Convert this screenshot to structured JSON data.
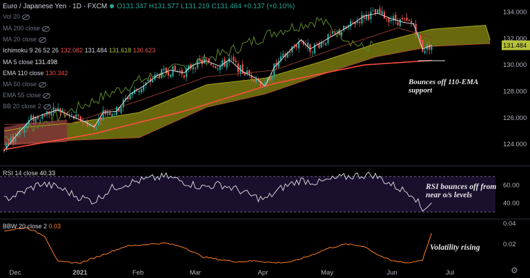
{
  "header": {
    "symbol": "Euro / Japanese Yen · 1D · FXCM",
    "ohlc": "O131.347 H131.577 L131.219 C131.484 +0.137 (+0.10%)"
  },
  "legend": {
    "vol": "Vol 20",
    "ma200": "MA 200 close",
    "ma20": "MA 20 close",
    "ichimoku_name": "Ichimoku 9 26 52 26",
    "ichimoku_v1": "132.082",
    "ichimoku_v2": "131.484",
    "ichimoku_v3": "131.618",
    "ichimoku_v4": "130.623",
    "ma5_name": "MA 5 close",
    "ma5_val": "131.498",
    "ema110_name": "EMA 110 close",
    "ema110_val": "130.342",
    "ma50": "MA 50 close",
    "ema55": "EMA 55 close",
    "bb": "BB 20 close 2"
  },
  "notes": {
    "ema_bounce_1": "Bounces off 110-EMA",
    "ema_bounce_2": "support",
    "rsi_1": "RSI bounces off from",
    "rsi_2": "near o/s levels",
    "vol": "Volatility rising"
  },
  "colors": {
    "up": "#26a69a",
    "down": "#ef5350",
    "ema": "#ff4d3d",
    "cloud": "#7a7a12",
    "cloud_edge": "#a6a61a",
    "kumo_bear": "#7a3535",
    "white": "#e8e8e8",
    "rsi_bg": "#1b0f2e",
    "bbw": "#ff7f27",
    "price_tag": "#b5c23a"
  },
  "chart_data": [
    {
      "type": "candlestick",
      "title": "Euro / Japanese Yen",
      "x_ticks": [
        "Dec",
        "2021",
        "Feb",
        "Mar",
        "Apr",
        "May",
        "Jun",
        "Jul"
      ],
      "y_ticks": [
        "134.000",
        "132.000",
        "130.000",
        "128.000",
        "126.000",
        "124.000"
      ],
      "ylim": [
        122.6,
        134.7
      ],
      "last_price": "131.484",
      "close_anchors": [
        [
          0,
          123.5
        ],
        [
          6,
          124.8
        ],
        [
          12,
          125.9
        ],
        [
          18,
          126.3
        ],
        [
          24,
          126.6
        ],
        [
          30,
          126.1
        ],
        [
          36,
          125.7
        ],
        [
          40,
          125.3
        ],
        [
          44,
          126.4
        ],
        [
          50,
          126.5
        ],
        [
          56,
          127.8
        ],
        [
          62,
          128.4
        ],
        [
          68,
          129.2
        ],
        [
          74,
          129.6
        ],
        [
          80,
          129.4
        ],
        [
          84,
          130.0
        ],
        [
          90,
          130.3
        ],
        [
          96,
          129.9
        ],
        [
          100,
          130.4
        ],
        [
          106,
          129.5
        ],
        [
          112,
          129.0
        ],
        [
          116,
          128.4
        ],
        [
          120,
          129.8
        ],
        [
          126,
          130.9
        ],
        [
          132,
          131.9
        ],
        [
          136,
          131.2
        ],
        [
          142,
          131.8
        ],
        [
          148,
          132.4
        ],
        [
          154,
          133.0
        ],
        [
          160,
          133.7
        ],
        [
          166,
          133.9
        ],
        [
          172,
          133.5
        ],
        [
          178,
          133.2
        ],
        [
          182,
          133.1
        ],
        [
          186,
          131.2
        ],
        [
          190,
          131.48
        ]
      ],
      "ema110_anchors": [
        [
          0,
          123.6
        ],
        [
          40,
          124.8
        ],
        [
          80,
          126.5
        ],
        [
          120,
          128.6
        ],
        [
          160,
          130.0
        ],
        [
          190,
          130.34
        ]
      ],
      "kijun_anchors": [
        [
          0,
          125.5
        ],
        [
          30,
          125.6
        ],
        [
          60,
          127.3
        ],
        [
          90,
          129.1
        ],
        [
          120,
          129.6
        ],
        [
          150,
          131.4
        ],
        [
          175,
          132.8
        ],
        [
          190,
          132.08
        ]
      ],
      "cloud_top_anchors": [
        [
          0,
          125.0
        ],
        [
          10,
          125.3
        ],
        [
          30,
          125.6
        ],
        [
          60,
          126.4
        ],
        [
          90,
          128.5
        ],
        [
          116,
          129.0
        ],
        [
          140,
          130.2
        ],
        [
          165,
          131.6
        ],
        [
          190,
          132.7
        ],
        [
          214,
          133.0
        ],
        [
          216,
          131.9
        ]
      ],
      "cloud_bot_anchors": [
        [
          0,
          124.0
        ],
        [
          10,
          124.1
        ],
        [
          30,
          124.3
        ],
        [
          60,
          124.5
        ],
        [
          90,
          126.8
        ],
        [
          116,
          127.8
        ],
        [
          140,
          129.2
        ],
        [
          165,
          130.6
        ],
        [
          190,
          131.4
        ],
        [
          214,
          131.6
        ],
        [
          216,
          131.6
        ]
      ],
      "chikou_anchors": [
        [
          0,
          124.5
        ],
        [
          20,
          125.8
        ],
        [
          40,
          127.3
        ],
        [
          60,
          128.8
        ],
        [
          80,
          129.9
        ],
        [
          100,
          131.0
        ],
        [
          120,
          132.5
        ],
        [
          140,
          133.4
        ],
        [
          160,
          131.2
        ],
        [
          164,
          131.5
        ]
      ]
    },
    {
      "type": "line",
      "title": "RSI 14 close",
      "value_label": "40.33",
      "y_ticks": [
        "60.00",
        "40.00"
      ],
      "ylim": [
        24,
        80
      ],
      "band": [
        30,
        70
      ],
      "anchors": [
        [
          0,
          44
        ],
        [
          8,
          52
        ],
        [
          16,
          62
        ],
        [
          24,
          58
        ],
        [
          32,
          48
        ],
        [
          40,
          42
        ],
        [
          48,
          57
        ],
        [
          56,
          63
        ],
        [
          64,
          67
        ],
        [
          72,
          70
        ],
        [
          80,
          64
        ],
        [
          88,
          58
        ],
        [
          96,
          61
        ],
        [
          104,
          55
        ],
        [
          110,
          48
        ],
        [
          116,
          44
        ],
        [
          124,
          58
        ],
        [
          132,
          66
        ],
        [
          140,
          63
        ],
        [
          148,
          68
        ],
        [
          156,
          71
        ],
        [
          164,
          72
        ],
        [
          170,
          64
        ],
        [
          176,
          56
        ],
        [
          182,
          50
        ],
        [
          186,
          31
        ],
        [
          188,
          35
        ],
        [
          190,
          40.33
        ]
      ]
    },
    {
      "type": "line",
      "title": "BBW 20 close 2",
      "value_label": "0.03",
      "y_ticks": [
        "0.04",
        "0.02"
      ],
      "ylim": [
        0.0,
        0.042
      ],
      "anchors": [
        [
          0,
          0.033
        ],
        [
          10,
          0.036
        ],
        [
          18,
          0.028
        ],
        [
          24,
          0.003
        ],
        [
          34,
          0.002
        ],
        [
          44,
          0.01
        ],
        [
          54,
          0.018
        ],
        [
          64,
          0.02
        ],
        [
          72,
          0.021
        ],
        [
          80,
          0.017
        ],
        [
          88,
          0.008
        ],
        [
          96,
          0.005
        ],
        [
          104,
          0.003
        ],
        [
          112,
          0.004
        ],
        [
          120,
          0.002
        ],
        [
          128,
          0.003
        ],
        [
          136,
          0.009
        ],
        [
          144,
          0.016
        ],
        [
          152,
          0.02
        ],
        [
          160,
          0.018
        ],
        [
          166,
          0.01
        ],
        [
          172,
          0.004
        ],
        [
          180,
          0.002
        ],
        [
          186,
          0.005
        ],
        [
          188,
          0.018
        ],
        [
          190,
          0.03
        ]
      ]
    }
  ]
}
